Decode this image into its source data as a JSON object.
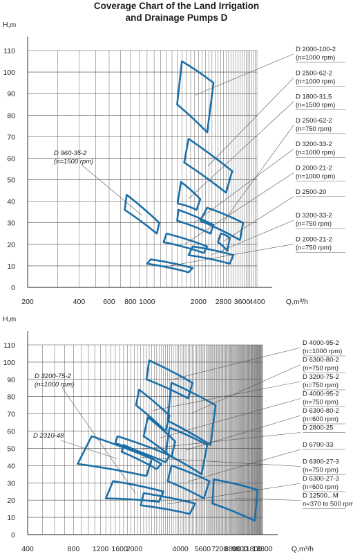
{
  "title_line1": "Coverage Chart of the Land Irrigation",
  "title_line2": "and Drainage Pumps D",
  "colors": {
    "region": "#1a6fa8",
    "grid": "#4a4a4a",
    "leader": "#555555",
    "text": "#1d1d1b"
  },
  "chart_data": [
    {
      "type": "area",
      "ylabel": "H,m",
      "xlabel": "Q,m³/h",
      "x_scale": "log",
      "x_ticks": [
        200,
        400,
        600,
        800,
        1000,
        2000,
        2800,
        3600,
        4400
      ],
      "y_ticks": [
        0,
        10,
        20,
        30,
        40,
        50,
        60,
        70,
        80,
        90,
        100,
        110
      ],
      "xlim": [
        200,
        4400
      ],
      "ylim": [
        0,
        110
      ],
      "grid": true,
      "legend_position": "right",
      "regions": [
        {
          "label": [
            "D 2000-100-2",
            "(n=1000 rpm)"
          ],
          "polygon": [
            [
              1600,
              105
            ],
            [
              2450,
              95
            ],
            [
              2250,
              72
            ],
            [
              1500,
              85
            ]
          ]
        },
        {
          "label": [
            "D 2500-62-2",
            "(n=1000 rpm)"
          ],
          "polygon": [
            [
              1750,
              69
            ],
            [
              3150,
              54
            ],
            [
              2900,
              44
            ],
            [
              1650,
              58
            ]
          ]
        },
        {
          "label": [
            "D 1800-31,5",
            "(n=1500 rpm)"
          ],
          "polygon": [
            [
              1580,
              49
            ],
            [
              2050,
              41
            ],
            [
              1950,
              36
            ],
            [
              1510,
              39
            ]
          ]
        },
        {
          "label": [
            "D 2500-62-2",
            "(n=750 rpm)"
          ],
          "polygon": [
            [
              2250,
              37
            ],
            [
              3650,
              30
            ],
            [
              3500,
              22
            ],
            [
              2050,
              31
            ]
          ]
        },
        {
          "label": [
            "D 3200-33-2",
            "(n=1000 rpm)"
          ],
          "polygon": [
            [
              1530,
              36
            ],
            [
              2450,
              29
            ],
            [
              2350,
              25
            ],
            [
              1500,
              31
            ]
          ]
        },
        {
          "label": [
            "D 2000-21-2",
            "(n=1000 rpm)"
          ],
          "polygon": [
            [
              1300,
              25
            ],
            [
              2250,
              19
            ],
            [
              2150,
              16
            ],
            [
              1250,
              21
            ]
          ]
        },
        {
          "label": [
            "D 2500-20"
          ],
          "polygon": [
            [
              2700,
              25
            ],
            [
              3050,
              23
            ],
            [
              2950,
              17
            ],
            [
              2600,
              21
            ]
          ]
        },
        {
          "label": [
            "D 3200-33-2",
            "(n=750 rpm)"
          ],
          "polygon": [
            [
              1850,
              19
            ],
            [
              3200,
              15
            ],
            [
              3050,
              11
            ],
            [
              1750,
              15
            ]
          ]
        },
        {
          "label": [
            "D 2000-21-2",
            "(n=750 rpm)"
          ],
          "polygon": [
            [
              1050,
              13
            ],
            [
              1850,
              9
            ],
            [
              1750,
              7
            ],
            [
              1000,
              11
            ]
          ]
        },
        {
          "label": [
            "D 960-35-2",
            "(n=1500 rpm)"
          ],
          "label_side": "left",
          "polygon": [
            [
              760,
              43
            ],
            [
              1180,
              30
            ],
            [
              1140,
              25
            ],
            [
              740,
              36
            ]
          ]
        }
      ]
    },
    {
      "type": "area",
      "ylabel": "H,m",
      "xlabel": "Q,m³/h",
      "x_scale": "log",
      "x_ticks": [
        400,
        800,
        1200,
        1600,
        2000,
        4000,
        5600,
        7200,
        8800,
        9800,
        11800,
        13800
      ],
      "y_ticks": [
        0,
        10,
        20,
        30,
        40,
        50,
        60,
        70,
        80,
        90,
        100,
        110
      ],
      "xlim": [
        400,
        13800
      ],
      "ylim": [
        0,
        110
      ],
      "grid": true,
      "legend_position": "right",
      "regions": [
        {
          "label": [
            "D 4000-95-2",
            "(n=1000 rpm)"
          ],
          "polygon": [
            [
              2500,
              101
            ],
            [
              4800,
              88
            ],
            [
              4500,
              79
            ],
            [
              2400,
              90
            ]
          ]
        },
        {
          "label": [
            "D 6300-80-2",
            "(n=750 rpm)"
          ],
          "polygon": [
            [
              3500,
              88
            ],
            [
              6800,
              75
            ],
            [
              6300,
              52
            ],
            [
              3300,
              66
            ]
          ]
        },
        {
          "label": [
            "D 3200-75-2",
            "(n=750 rpm)"
          ],
          "polygon": [
            [
              2150,
              84
            ],
            [
              3400,
              69
            ],
            [
              3200,
              60
            ],
            [
              2050,
              75
            ]
          ]
        },
        {
          "label": [
            "D 4000-95-2",
            "(n=750 rpm)"
          ],
          "polygon": [
            [
              2450,
              68
            ],
            [
              3700,
              54
            ],
            [
              3500,
              45
            ],
            [
              2300,
              57
            ]
          ]
        },
        {
          "label": [
            "D 6300-80-2",
            "(n=600 rpm)"
          ],
          "polygon": [
            [
              3400,
              62
            ],
            [
              6000,
              52
            ],
            [
              5500,
              35
            ],
            [
              3200,
              47
            ]
          ]
        },
        {
          "label": [
            "D 2800-25"
          ],
          "polygon": [
            [
              1550,
              57
            ],
            [
              3400,
              46
            ],
            [
              3200,
              42
            ],
            [
              1500,
              53
            ]
          ]
        },
        {
          "label": [
            "D 6700-33"
          ],
          "polygon": [
            [
              3500,
              40
            ],
            [
              6200,
              31
            ],
            [
              5700,
              21
            ],
            [
              3300,
              31
            ]
          ]
        },
        {
          "label": [
            "D 6300-27-3",
            "(n=750 rpm)"
          ],
          "polygon": [
            [
              1700,
              52
            ],
            [
              3000,
              41
            ],
            [
              2800,
              38
            ],
            [
              1650,
              48
            ]
          ]
        },
        {
          "label": [
            "D 6300-27-3",
            "(n=600 rpm)"
          ],
          "polygon": [
            [
              2300,
              24
            ],
            [
              5000,
              18
            ],
            [
              4600,
              12
            ],
            [
              2200,
              17
            ]
          ]
        },
        {
          "label": [
            "D 12500...M",
            "n=370 to 500 rpm)"
          ],
          "polygon": [
            [
              6600,
              32
            ],
            [
              12800,
              26
            ],
            [
              12300,
              8
            ],
            [
              6500,
              18
            ]
          ]
        },
        {
          "label": [
            "D 2310-48"
          ],
          "label_side": "left",
          "polygon": [
            [
              1050,
              57
            ],
            [
              2600,
              44
            ],
            [
              2400,
              34
            ],
            [
              850,
              41
            ]
          ]
        },
        {
          "label": [
            "D 3200-75-2",
            "(n=1000 rpm)"
          ],
          "label_side": "left",
          "polygon": [
            [
              1450,
              31
            ],
            [
              3100,
              25
            ],
            [
              2900,
              19
            ],
            [
              1300,
              21
            ]
          ]
        }
      ]
    }
  ]
}
